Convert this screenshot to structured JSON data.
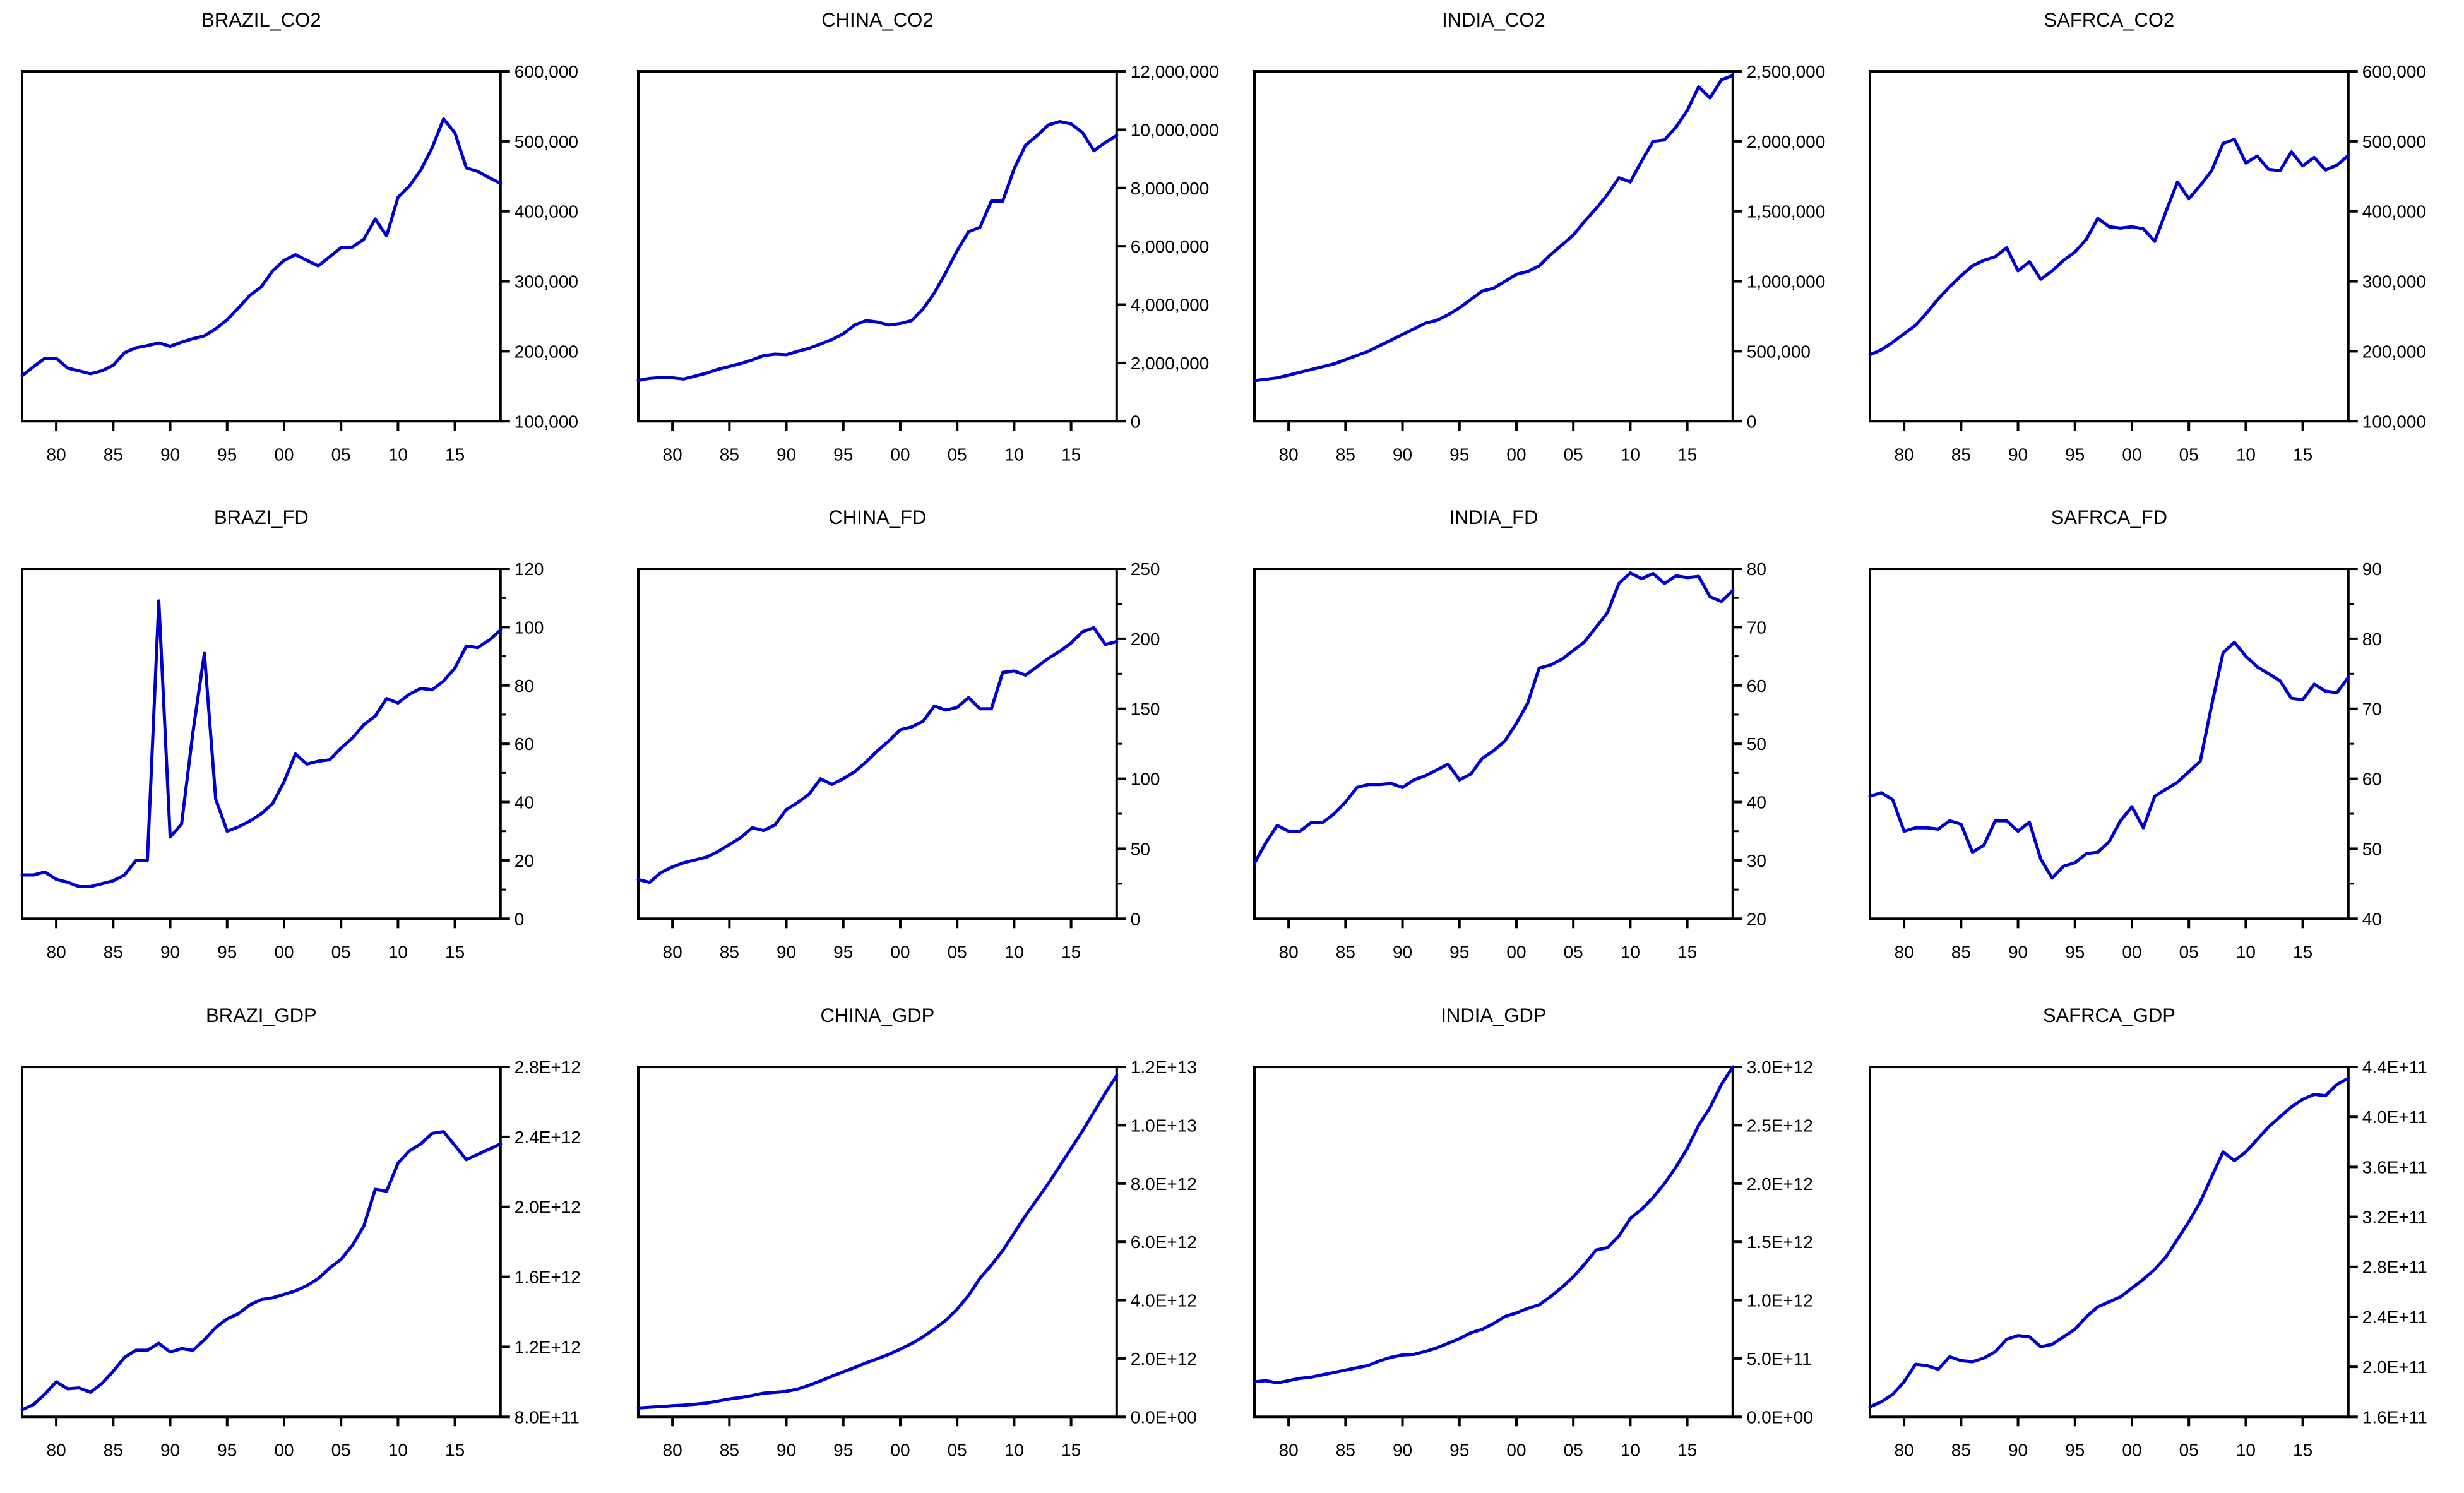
{
  "page": {
    "background_color": "#ffffff",
    "line_color": "#0000cc",
    "axis_color": "#000000",
    "layout": "4x3-multiple-line-graphs"
  },
  "chart_data": [
    {
      "type": "line",
      "title": "BRAZIL_CO2",
      "legend_position": "none",
      "grid": false,
      "y_min": 100000,
      "y_max": 600000,
      "y_tick_labels": [
        "100,000",
        "200,000",
        "300,000",
        "400,000",
        "500,000",
        "600,000"
      ],
      "minor_y_ticks": false,
      "x_start_year": 1977,
      "x_end_year": 2019,
      "x_tick_years": [
        1980,
        1985,
        1990,
        1995,
        2000,
        2005,
        2010,
        2015
      ],
      "x_tick_labels": [
        "80",
        "85",
        "90",
        "95",
        "00",
        "05",
        "10",
        "15"
      ],
      "values": [
        165000,
        178000,
        190000,
        190000,
        176000,
        172000,
        168000,
        172000,
        180000,
        198000,
        205000,
        208000,
        212000,
        207000,
        213000,
        218000,
        222000,
        232000,
        245000,
        262000,
        280000,
        292000,
        315000,
        330000,
        338000,
        330000,
        322000,
        335000,
        348000,
        349000,
        360000,
        389000,
        365000,
        420000,
        436000,
        459000,
        491000,
        532000,
        512000,
        462000,
        457000,
        448000,
        440000
      ]
    },
    {
      "type": "line",
      "title": "CHINA_CO2",
      "legend_position": "none",
      "grid": false,
      "y_min": 0,
      "y_max": 12000000,
      "y_tick_labels": [
        "0",
        "2,000,000",
        "4,000,000",
        "6,000,000",
        "8,000,000",
        "10,000,000",
        "12,000,000"
      ],
      "minor_y_ticks": false,
      "x_start_year": 1977,
      "x_end_year": 2019,
      "x_tick_years": [
        1980,
        1985,
        1990,
        1995,
        2000,
        2005,
        2010,
        2015
      ],
      "x_tick_labels": [
        "80",
        "85",
        "90",
        "95",
        "00",
        "05",
        "10",
        "15"
      ],
      "values": [
        1400000,
        1470000,
        1500000,
        1490000,
        1450000,
        1550000,
        1650000,
        1780000,
        1880000,
        1980000,
        2100000,
        2250000,
        2300000,
        2280000,
        2400000,
        2500000,
        2650000,
        2800000,
        3000000,
        3300000,
        3450000,
        3400000,
        3300000,
        3350000,
        3450000,
        3850000,
        4400000,
        5100000,
        5850000,
        6500000,
        6650000,
        7550000,
        7550000,
        8660000,
        9470000,
        9790000,
        10160000,
        10280000,
        10200000,
        9900000,
        9280000,
        9560000,
        9800000
      ]
    },
    {
      "type": "line",
      "title": "INDIA_CO2",
      "legend_position": "none",
      "grid": false,
      "y_min": 0,
      "y_max": 2500000,
      "y_tick_labels": [
        "0",
        "500,000",
        "1,000,000",
        "1,500,000",
        "2,000,000",
        "2,500,000"
      ],
      "minor_y_ticks": false,
      "x_start_year": 1977,
      "x_end_year": 2019,
      "x_tick_years": [
        1980,
        1985,
        1990,
        1995,
        2000,
        2005,
        2010,
        2015
      ],
      "x_tick_labels": [
        "80",
        "85",
        "90",
        "95",
        "00",
        "05",
        "10",
        "15"
      ],
      "values": [
        290000,
        300000,
        310000,
        330000,
        350000,
        370000,
        390000,
        410000,
        440000,
        470000,
        500000,
        540000,
        580000,
        620000,
        660000,
        700000,
        720000,
        760000,
        810000,
        870000,
        930000,
        950000,
        1000000,
        1050000,
        1070000,
        1110000,
        1190000,
        1260000,
        1330000,
        1430000,
        1520000,
        1620000,
        1740000,
        1710000,
        1860000,
        2000000,
        2010000,
        2100000,
        2220000,
        2390000,
        2310000,
        2440000,
        2470000
      ]
    },
    {
      "type": "line",
      "title": "SAFRCA_CO2",
      "legend_position": "none",
      "grid": false,
      "y_min": 100000,
      "y_max": 600000,
      "y_tick_labels": [
        "100,000",
        "200,000",
        "300,000",
        "400,000",
        "500,000",
        "600,000"
      ],
      "minor_y_ticks": false,
      "x_start_year": 1977,
      "x_end_year": 2019,
      "x_tick_years": [
        1980,
        1985,
        1990,
        1995,
        2000,
        2005,
        2010,
        2015
      ],
      "x_tick_labels": [
        "80",
        "85",
        "90",
        "95",
        "00",
        "05",
        "10",
        "15"
      ],
      "values": [
        195000,
        202000,
        213000,
        225000,
        237000,
        255000,
        275000,
        292000,
        308000,
        322000,
        330000,
        335000,
        348000,
        315000,
        328000,
        303000,
        315000,
        330000,
        342000,
        360000,
        390000,
        378000,
        376000,
        378000,
        375000,
        357000,
        400000,
        442000,
        418000,
        437000,
        458000,
        497000,
        503000,
        469000,
        479000,
        460000,
        458000,
        485000,
        465000,
        477000,
        459000,
        466000,
        480000
      ]
    },
    {
      "type": "line",
      "title": "BRAZI_FD",
      "legend_position": "none",
      "grid": false,
      "y_min": 0,
      "y_max": 120,
      "y_tick_labels": [
        "0",
        "20",
        "40",
        "60",
        "80",
        "100",
        "120"
      ],
      "minor_y_ticks": true,
      "x_start_year": 1977,
      "x_end_year": 2019,
      "x_tick_years": [
        1980,
        1985,
        1990,
        1995,
        2000,
        2005,
        2010,
        2015
      ],
      "x_tick_labels": [
        "80",
        "85",
        "90",
        "95",
        "00",
        "05",
        "10",
        "15"
      ],
      "values": [
        15,
        15,
        16,
        13.5,
        12.5,
        11,
        11,
        12,
        13,
        15,
        20,
        20,
        109,
        28,
        32.5,
        64,
        91,
        41,
        30,
        31.5,
        33.5,
        36,
        39.5,
        47,
        56.5,
        53,
        54,
        54.5,
        58.5,
        62,
        66.5,
        69.5,
        75.5,
        74,
        77,
        79,
        78.5,
        81.5,
        86,
        93.5,
        93,
        95.5,
        99
      ]
    },
    {
      "type": "line",
      "title": "CHINA_FD",
      "legend_position": "none",
      "grid": false,
      "y_min": 0,
      "y_max": 250,
      "y_tick_labels": [
        "0",
        "50",
        "100",
        "150",
        "200",
        "250"
      ],
      "minor_y_ticks": true,
      "x_start_year": 1977,
      "x_end_year": 2019,
      "x_tick_years": [
        1980,
        1985,
        1990,
        1995,
        2000,
        2005,
        2010,
        2015
      ],
      "x_tick_labels": [
        "80",
        "85",
        "90",
        "95",
        "00",
        "05",
        "10",
        "15"
      ],
      "values": [
        28,
        26,
        33,
        37,
        40,
        42,
        44,
        48,
        53,
        58,
        65,
        63,
        67,
        78,
        83,
        89,
        100,
        96,
        100,
        105,
        112,
        120,
        127,
        135,
        137,
        141,
        152,
        149,
        151,
        158,
        150,
        150,
        176,
        177,
        174,
        180,
        186,
        191,
        197,
        205,
        208,
        196,
        198
      ]
    },
    {
      "type": "line",
      "title": "INDIA_FD",
      "legend_position": "none",
      "grid": false,
      "y_min": 20,
      "y_max": 80,
      "y_tick_labels": [
        "20",
        "30",
        "40",
        "50",
        "60",
        "70",
        "80"
      ],
      "minor_y_ticks": true,
      "x_start_year": 1977,
      "x_end_year": 2019,
      "x_tick_years": [
        1980,
        1985,
        1990,
        1995,
        2000,
        2005,
        2010,
        2015
      ],
      "x_tick_labels": [
        "80",
        "85",
        "90",
        "95",
        "00",
        "05",
        "10",
        "15"
      ],
      "values": [
        29.5,
        33,
        36,
        35,
        35,
        36.5,
        36.5,
        38,
        40,
        42.5,
        43,
        43,
        43.2,
        42.5,
        43.8,
        44.5,
        45.5,
        46.5,
        43.8,
        44.8,
        47.5,
        48.8,
        50.5,
        53.5,
        57,
        63,
        63.5,
        64.5,
        66,
        67.5,
        70,
        72.5,
        77.5,
        79.3,
        78.3,
        79.2,
        77.5,
        78.8,
        78.5,
        78.7,
        75.2,
        74.4,
        76.3
      ]
    },
    {
      "type": "line",
      "title": "SAFRCA_FD",
      "legend_position": "none",
      "grid": false,
      "y_min": 40,
      "y_max": 90,
      "y_tick_labels": [
        "40",
        "50",
        "60",
        "70",
        "80",
        "90"
      ],
      "minor_y_ticks": true,
      "x_start_year": 1977,
      "x_end_year": 2019,
      "x_tick_years": [
        1980,
        1985,
        1990,
        1995,
        2000,
        2005,
        2010,
        2015
      ],
      "x_tick_labels": [
        "80",
        "85",
        "90",
        "95",
        "00",
        "05",
        "10",
        "15"
      ],
      "values": [
        57.5,
        58,
        57,
        52.5,
        53,
        53,
        52.8,
        54,
        53.5,
        49.5,
        50.5,
        54,
        54,
        52.5,
        53.8,
        48.5,
        45.8,
        47.5,
        48,
        49.3,
        49.5,
        51,
        54,
        56,
        53,
        57.5,
        58.5,
        59.5,
        61,
        62.5,
        70.5,
        78,
        79.5,
        77.5,
        76,
        75,
        74,
        71.5,
        71.3,
        73.5,
        72.5,
        72.3,
        74.5
      ]
    },
    {
      "type": "line",
      "title": "BRAZI_GDP",
      "legend_position": "none",
      "grid": false,
      "y_min": 800000000000.0,
      "y_max": 2800000000000.0,
      "y_tick_labels": [
        "8.0E+11",
        "1.2E+12",
        "1.6E+12",
        "2.0E+12",
        "2.4E+12",
        "2.8E+12"
      ],
      "minor_y_ticks": false,
      "x_start_year": 1977,
      "x_end_year": 2019,
      "x_tick_years": [
        1980,
        1985,
        1990,
        1995,
        2000,
        2005,
        2010,
        2015
      ],
      "x_tick_labels": [
        "80",
        "85",
        "90",
        "95",
        "00",
        "05",
        "10",
        "15"
      ],
      "values": [
        840000000000.0,
        870000000000.0,
        930000000000.0,
        1000000000000.0,
        960000000000.0,
        965000000000.0,
        940000000000.0,
        990000000000.0,
        1060000000000.0,
        1140000000000.0,
        1180000000000.0,
        1180000000000.0,
        1220000000000.0,
        1170000000000.0,
        1190000000000.0,
        1180000000000.0,
        1240000000000.0,
        1310000000000.0,
        1360000000000.0,
        1390000000000.0,
        1440000000000.0,
        1470000000000.0,
        1480000000000.0,
        1500000000000.0,
        1520000000000.0,
        1550000000000.0,
        1590000000000.0,
        1650000000000.0,
        1700000000000.0,
        1780000000000.0,
        1890000000000.0,
        2100000000000.0,
        2090000000000.0,
        2250000000000.0,
        2320000000000.0,
        2360000000000.0,
        2420000000000.0,
        2430000000000.0,
        2350000000000.0,
        2270000000000.0,
        2300000000000.0,
        2330000000000.0,
        2360000000000.0
      ]
    },
    {
      "type": "line",
      "title": "CHINA_GDP",
      "legend_position": "none",
      "grid": false,
      "y_min": 0,
      "y_max": 12000000000000.0,
      "y_tick_labels": [
        "0.0E+00",
        "2.0E+12",
        "4.0E+12",
        "6.0E+12",
        "8.0E+12",
        "1.0E+13",
        "1.2E+13"
      ],
      "minor_y_ticks": false,
      "x_start_year": 1977,
      "x_end_year": 2019,
      "x_tick_years": [
        1980,
        1985,
        1990,
        1995,
        2000,
        2005,
        2010,
        2015
      ],
      "x_tick_labels": [
        "80",
        "85",
        "90",
        "95",
        "00",
        "05",
        "10",
        "15"
      ],
      "values": [
        300000000000.0,
        330000000000.0,
        350000000000.0,
        380000000000.0,
        400000000000.0,
        430000000000.0,
        470000000000.0,
        540000000000.0,
        610000000000.0,
        660000000000.0,
        730000000000.0,
        810000000000.0,
        840000000000.0,
        870000000000.0,
        950000000000.0,
        1080000000000.0,
        1230000000000.0,
        1390000000000.0,
        1540000000000.0,
        1690000000000.0,
        1850000000000.0,
        1990000000000.0,
        2140000000000.0,
        2320000000000.0,
        2510000000000.0,
        2740000000000.0,
        3010000000000.0,
        3310000000000.0,
        3690000000000.0,
        4160000000000.0,
        4750000000000.0,
        5200000000000.0,
        5700000000000.0,
        6300000000000.0,
        6900000000000.0,
        7450000000000.0,
        8000000000000.0,
        8600000000000.0,
        9200000000000.0,
        9800000000000.0,
        10450000000000.0,
        11100000000000.0,
        11700000000000.0
      ]
    },
    {
      "type": "line",
      "title": "INDIA_GDP",
      "legend_position": "none",
      "grid": false,
      "y_min": 0,
      "y_max": 3000000000000.0,
      "y_tick_labels": [
        "0.0E+00",
        "5.0E+11",
        "1.0E+12",
        "1.5E+12",
        "2.0E+12",
        "2.5E+12",
        "3.0E+12"
      ],
      "minor_y_ticks": false,
      "x_start_year": 1977,
      "x_end_year": 2019,
      "x_tick_years": [
        1980,
        1985,
        1990,
        1995,
        2000,
        2005,
        2010,
        2015
      ],
      "x_tick_labels": [
        "80",
        "85",
        "90",
        "95",
        "00",
        "05",
        "10",
        "15"
      ],
      "values": [
        300000000000.0,
        310000000000.0,
        290000000000.0,
        310000000000.0,
        330000000000.0,
        340000000000.0,
        360000000000.0,
        380000000000.0,
        400000000000.0,
        420000000000.0,
        440000000000.0,
        480000000000.0,
        510000000000.0,
        530000000000.0,
        535000000000.0,
        560000000000.0,
        590000000000.0,
        630000000000.0,
        670000000000.0,
        720000000000.0,
        750000000000.0,
        800000000000.0,
        860000000000.0,
        890000000000.0,
        930000000000.0,
        960000000000.0,
        1030000000000.0,
        1110000000000.0,
        1200000000000.0,
        1310000000000.0,
        1430000000000.0,
        1450000000000.0,
        1550000000000.0,
        1700000000000.0,
        1780000000000.0,
        1880000000000.0,
        2000000000000.0,
        2140000000000.0,
        2300000000000.0,
        2500000000000.0,
        2650000000000.0,
        2850000000000.0,
        3000000000000.0
      ]
    },
    {
      "type": "line",
      "title": "SAFRCA_GDP",
      "legend_position": "none",
      "grid": false,
      "y_min": 160000000000.0,
      "y_max": 440000000000.0,
      "y_tick_labels": [
        "1.6E+11",
        "2.0E+11",
        "2.4E+11",
        "2.8E+11",
        "3.2E+11",
        "3.6E+11",
        "4.0E+11",
        "4.4E+11"
      ],
      "minor_y_ticks": false,
      "x_start_year": 1977,
      "x_end_year": 2019,
      "x_tick_years": [
        1980,
        1985,
        1990,
        1995,
        2000,
        2005,
        2010,
        2015
      ],
      "x_tick_labels": [
        "80",
        "85",
        "90",
        "95",
        "00",
        "05",
        "10",
        "15"
      ],
      "values": [
        168000000000.0,
        172000000000.0,
        178000000000.0,
        188000000000.0,
        202000000000.0,
        201000000000.0,
        198000000000.0,
        208000000000.0,
        205000000000.0,
        204000000000.0,
        207000000000.0,
        212000000000.0,
        222000000000.0,
        225000000000.0,
        224000000000.0,
        216000000000.0,
        218000000000.0,
        224000000000.0,
        230000000000.0,
        240000000000.0,
        248000000000.0,
        252000000000.0,
        256000000000.0,
        263000000000.0,
        270000000000.0,
        278000000000.0,
        288000000000.0,
        302000000000.0,
        316000000000.0,
        332000000000.0,
        352000000000.0,
        372000000000.0,
        365000000000.0,
        372000000000.0,
        382000000000.0,
        392000000000.0,
        400000000000.0,
        408000000000.0,
        414000000000.0,
        418000000000.0,
        417000000000.0,
        426000000000.0,
        431000000000.0
      ]
    }
  ]
}
